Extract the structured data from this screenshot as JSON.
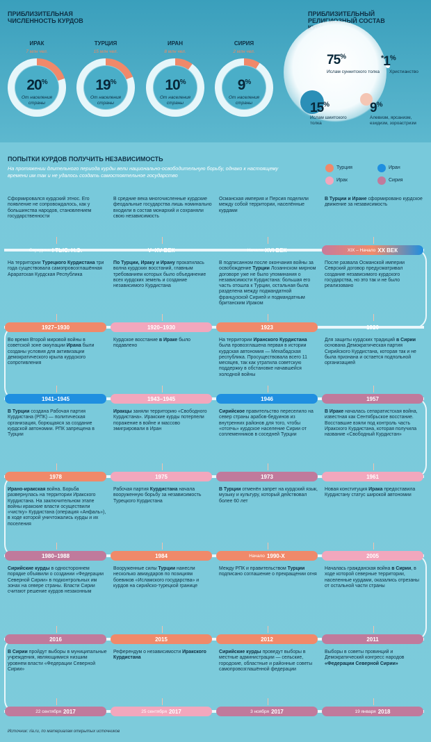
{
  "pop_title": "ПРИБЛИЗИТЕЛЬНАЯ ЧИСЛЕННОСТЬ КУРДОВ",
  "rel_title": "ПРИБЛИЗИТЕЛЬНЫЙ РЕЛИГИОЗНЫЙ СОСТАВ КУРДОВ",
  "countries": [
    {
      "name": "ИРАК",
      "mln": "7 млн чел.",
      "pct": "20",
      "caption": "От населения страны",
      "share": 0.2
    },
    {
      "name": "ТУРЦИЯ",
      "mln": "15 млн чел.",
      "pct": "19",
      "caption": "От населения страны",
      "share": 0.19
    },
    {
      "name": "ИРАН",
      "mln": "8 млн чел.",
      "pct": "10",
      "caption": "От населения страны",
      "share": 0.1
    },
    {
      "name": "СИРИЯ",
      "mln": "2 млн чел.",
      "pct": "9",
      "caption": "От населения страны",
      "share": 0.09
    }
  ],
  "percent_sign": "%",
  "religion": [
    {
      "pct": "75",
      "label": "Ислам суннитского толка"
    },
    {
      "pct": "15",
      "label": "Ислам шиитского толка"
    },
    {
      "pct": "9",
      "label": "Алевизм, ярсанизм, езидизм, зороастризм"
    },
    {
      "pct": "1",
      "label": "Христианство",
      "mark": "*"
    }
  ],
  "section_title": "ПОПЫТКИ КУРДОВ ПОЛУЧИТЬ НЕЗАВИСИМОСТЬ",
  "intro": "На протяжении длительного периода курды вели национально-освободительную борьбу, однако к настоящему времени им так и не удалось создать самостоятельное государство",
  "legend": [
    {
      "label": "Турция",
      "color": "#f0896a"
    },
    {
      "label": "Иран",
      "color": "#1f8fe0"
    },
    {
      "label": "Ирак",
      "color": "#f2a7bd"
    },
    {
      "label": "Сирия",
      "color": "#c07a9c"
    }
  ],
  "rows": [
    {
      "texts": [
        "Сформировался курдский этнос. Его появление не сопровождалось, как у большинства народов, становлением государственности",
        "В средние века многочисленные курдские феодальные государства лишь номинально входили в состав монархий и сохраняли свою независимость",
        "Османская империя и Персия поделили между собой территории, населённые курдами",
        "<b>В Турции и Иране</b> сформировано курдское движение за независимость"
      ],
      "pills": [
        {
          "pre": "Середина",
          "main": "I ТЫС. Н.Э.",
          "color": "none"
        },
        {
          "pre": "",
          "main": "V–XV ВЕК",
          "color": "none"
        },
        {
          "pre": "Начало",
          "main": "XVI ВЕК",
          "color": "none"
        },
        {
          "pre": "XIX –  Начало",
          "main": "XX ВЕК",
          "color": "grad"
        }
      ]
    },
    {
      "texts": [
        "На территории <b>Турецкого Курдистана</b> три года существовала самопровозглашённая Араратская Курдская Республика",
        "<b>По Турции, Ираку и Ирану</b> прокатилась волна курдских восстаний, главным требованием которых было объединение всех курдских земель и создание независимого Курдистана",
        "В подписанном после окончания войны за освобождение <b>Турции</b> Лозаннском мирном договоре уже не было упоминания о независимости Курдистана: большая его часть отошла к Турции, остальная была разделена между подмандатной французской Сирией и подмандатным британским Ираком",
        "После развала Османской империи Севрский договор предусматривал создание независимого курдского государства, но это так и не было реализовано"
      ],
      "pills": [
        {
          "pre": "",
          "main": "1927–1930",
          "color": "#f0896a"
        },
        {
          "pre": "",
          "main": "1920–1930",
          "color": "#f2a7bd"
        },
        {
          "pre": "",
          "main": "1923",
          "color": "#f0896a"
        },
        {
          "pre": "",
          "main": "1920",
          "color": "none"
        }
      ]
    },
    {
      "texts": [
        "Во время Второй мировой войны в советской зоне оккупации <b>Ирана</b> были созданы условия для активизации демократического крыла курдского сопротивления",
        "Курдское восстание <b>в Ираке</b> было подавлено",
        "На территории <b>Иранского Курдистана</b> была провозглашена первая в истории курдская автономия — Мехабадская республика. Просуществовала всего 11 месяцев, так как утратила советскую поддержку в обстановке начавшейся холодной войны",
        "Для защиты курдских традиций <b>в Сирии</b> основана Демократическая партия Сирийского Курдистана, которая так и не была признана и остается подпольной организацией"
      ],
      "pills": [
        {
          "pre": "",
          "main": "1941–1945",
          "color": "#1f8fe0"
        },
        {
          "pre": "",
          "main": "1943–1945",
          "color": "#f2a7bd"
        },
        {
          "pre": "",
          "main": "1946",
          "color": "#1f8fe0"
        },
        {
          "pre": "",
          "main": "1957",
          "color": "#c07a9c"
        }
      ]
    },
    {
      "texts": [
        "<b>В Турции</b> создана Рабочая партия Курдистана (РПК) — политическая организация, борющаяся за создание курдской автономии. РПК запрещена в Турции",
        "<b>Иракцы</b> заняли территорию «Свободного Курдистана». Иракские курды потерпели поражение в войне и массово эмигрировали в Иран",
        "<b>Сирийское</b> правительство переселило на север страны арабов-бедуинов из внутренних районов для того, чтобы «отсечь» курдское население Сирии от соплеменников в соседней Турции",
        "<b>В Ираке</b> началась сепаратистская война, известная как Сентябрьское восстание. Восставшие взяли под контроль часть Иракского Курдистана, которая получила название «Свободный Курдистан»"
      ],
      "pills": [
        {
          "pre": "",
          "main": "1978",
          "color": "#f0896a"
        },
        {
          "pre": "",
          "main": "1975",
          "color": "#f2a7bd"
        },
        {
          "pre": "",
          "main": "1973",
          "color": "#c07a9c"
        },
        {
          "pre": "",
          "main": "1961",
          "color": "#f2a7bd"
        }
      ]
    },
    {
      "texts": [
        "<b>Ирано-иракская</b> война. Борьба развернулась на территории Иракского Курдистана. На заключительном этапе войны иракские власти осуществили «чистку» Курдистана (операция «Анфаль»), в ходе которой уничтожались курды и их поселения",
        "Рабочая партия <b>Курдистана</b> начала вооруженную борьбу за независимость Турецкого Курдистана",
        "<b>В Турции</b> отменён запрет на курдский язык, музыку и культуру, который действовал более 60 лет",
        "Новая конституция <b>Ирака</b> предоставила Курдистану статус широкой автономии"
      ],
      "pills": [
        {
          "pre": "",
          "main": "1980–1988",
          "color": "#c07a9c"
        },
        {
          "pre": "",
          "main": "1984",
          "color": "#f0896a"
        },
        {
          "pre": "Начало",
          "main": "1990-Х",
          "color": "#f0896a"
        },
        {
          "pre": "",
          "main": "2005",
          "color": "#f2a7bd"
        }
      ]
    },
    {
      "texts": [
        "<b>Сирийские курды</b> в одностороннем порядке объявили о создании «Федерации Северной Сирии» в подконтрольных им зонах на севере страны. Власти Сирии считают решение курдов незаконным",
        "Вооруженные силы <b>Турции</b> нанесли несколько авиаударов по позициям боевиков «Исламского государства» и курдов на сирийско-турецкой границе",
        "Между РПК и правительством <b>Турции</b> подписано соглашение о прекращении огня",
        "Началась гражданская война <b>в Сирии</b>, в ходе которой северные территории, населенные курдами, оказались отрезаны от остальной части страны"
      ],
      "pills": [
        {
          "pre": "",
          "main": "2016",
          "color": "#c07a9c"
        },
        {
          "pre": "",
          "main": "2015",
          "color": "#f0896a"
        },
        {
          "pre": "",
          "main": "2012",
          "color": "#f0896a"
        },
        {
          "pre": "",
          "main": "2011",
          "color": "#c07a9c"
        }
      ]
    },
    {
      "texts": [
        "<b>В Сирии</b> пройдут выборы в муниципальные учреждения, являющимися низшим уровнем власти «Федерации Северной Сирии»",
        "Референдум о независимости <b>Иракского Курдистана</b>",
        "<b>Сирийские курды</b> проведут выборы в местные администрации — сельские, городские, областные и районные советы самопровозглашённой федерации",
        "Выборы в советы провинций и Демократический конгресс народов <b>«Федерации Северной Сирии»</b>"
      ],
      "pills": [
        {
          "pre": "22 сентября",
          "main": "2017",
          "color": "#c07a9c"
        },
        {
          "pre": "25 сентября",
          "main": "2017",
          "color": "#f2a7bd"
        },
        {
          "pre": "3 ноября",
          "main": "2017",
          "color": "#c07a9c"
        },
        {
          "pre": "19 января",
          "main": "2018",
          "color": "#c07a9c"
        }
      ]
    }
  ],
  "source": "Источник: ria.ru, по материалам открытых источников"
}
